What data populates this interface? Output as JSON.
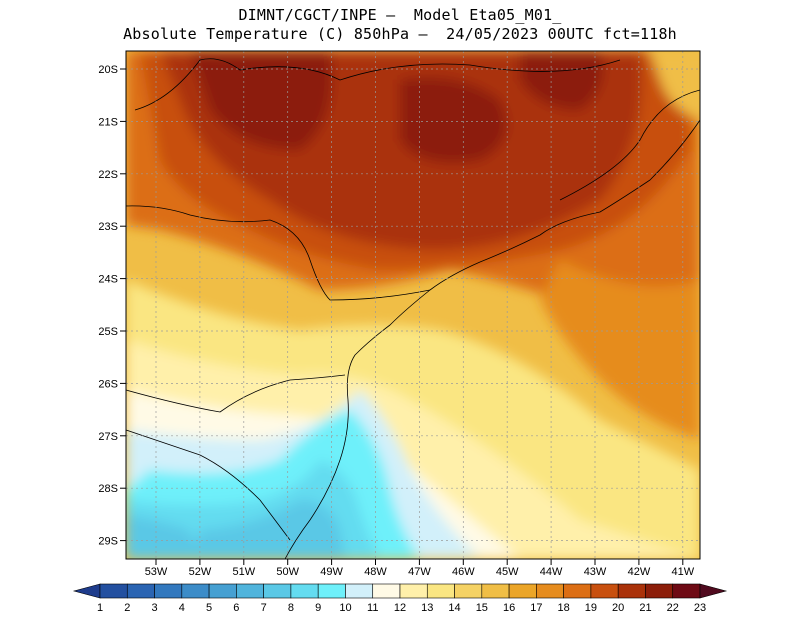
{
  "header": {
    "line1": "DIMNT/CGCT/INPE –  Model Eta05_M01_",
    "line2": "Absolute Temperature (C) 850hPa –  24/05/2023 00UTC fct=118h"
  },
  "map": {
    "latitude_labels": [
      "20S",
      "21S",
      "22S",
      "23S",
      "24S",
      "25S",
      "26S",
      "27S",
      "28S",
      "29S"
    ],
    "longitude_labels": [
      "53W",
      "52W",
      "51W",
      "50W",
      "49W",
      "48W",
      "47W",
      "46W",
      "45W",
      "44W",
      "43W",
      "42W",
      "41W"
    ]
  },
  "colorbar": {
    "labels": [
      "1",
      "2",
      "3",
      "4",
      "5",
      "6",
      "7",
      "8",
      "9",
      "10",
      "11",
      "12",
      "13",
      "14",
      "15",
      "16",
      "17",
      "18",
      "19",
      "20",
      "21",
      "22",
      "23"
    ],
    "colors": [
      "#1e3c8c",
      "#2350a0",
      "#2a64b2",
      "#3278be",
      "#3c8cc8",
      "#46a0d2",
      "#50b4dc",
      "#5ac8e6",
      "#64dcf0",
      "#6ef0fa",
      "#d2f0fa",
      "#fffae6",
      "#fff0aa",
      "#fae682",
      "#f5d264",
      "#f0be46",
      "#eba528",
      "#e68c1e",
      "#dc6e14",
      "#c8500f",
      "#aa320a",
      "#8c1e0a",
      "#6e0a14",
      "#500a1e"
    ]
  },
  "colors": {
    "ocean_blue": "#5ac8e6",
    "warm_dark": "#8c2a0a"
  }
}
